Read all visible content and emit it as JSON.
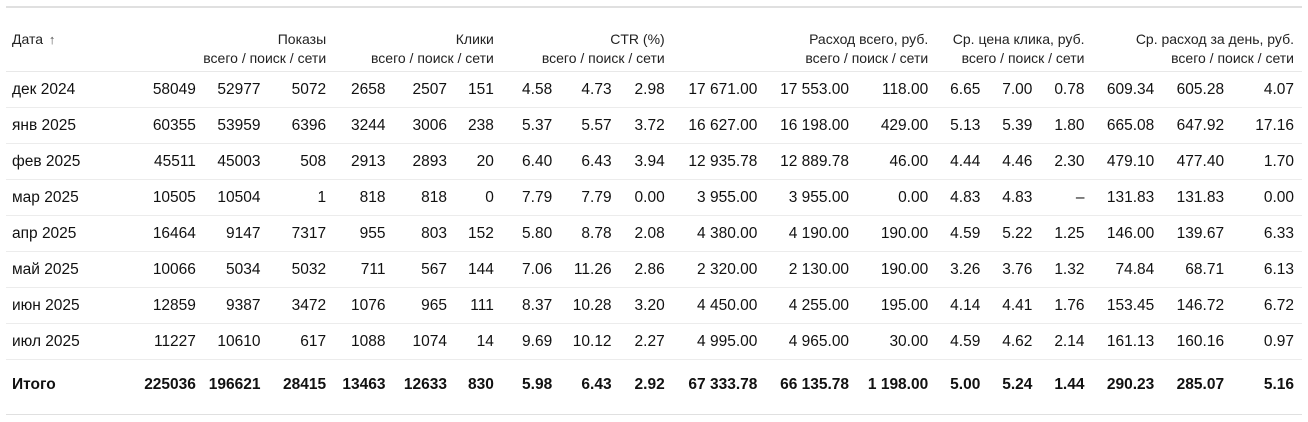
{
  "headers": {
    "date": "Дата",
    "sort_arrow": "↑",
    "impressions": "Показы",
    "clicks": "Клики",
    "ctr": "CTR (%)",
    "spend": "Расход всего, руб.",
    "cpc": "Ср. цена клика, руб.",
    "daily_spend": "Ср. расход за день, руб.",
    "sub": "всего / поиск / сети"
  },
  "rows": [
    {
      "date": "дек 2024",
      "cells": [
        "58049",
        "52977",
        "5072",
        "2658",
        "2507",
        "151",
        "4.58",
        "4.73",
        "2.98",
        "17 671.00",
        "17 553.00",
        "118.00",
        "6.65",
        "7.00",
        "0.78",
        "609.34",
        "605.28",
        "4.07"
      ]
    },
    {
      "date": "янв 2025",
      "cells": [
        "60355",
        "53959",
        "6396",
        "3244",
        "3006",
        "238",
        "5.37",
        "5.57",
        "3.72",
        "16 627.00",
        "16 198.00",
        "429.00",
        "5.13",
        "5.39",
        "1.80",
        "665.08",
        "647.92",
        "17.16"
      ]
    },
    {
      "date": "фев 2025",
      "cells": [
        "45511",
        "45003",
        "508",
        "2913",
        "2893",
        "20",
        "6.40",
        "6.43",
        "3.94",
        "12 935.78",
        "12 889.78",
        "46.00",
        "4.44",
        "4.46",
        "2.30",
        "479.10",
        "477.40",
        "1.70"
      ]
    },
    {
      "date": "мар 2025",
      "cells": [
        "10505",
        "10504",
        "1",
        "818",
        "818",
        "0",
        "7.79",
        "7.79",
        "0.00",
        "3 955.00",
        "3 955.00",
        "0.00",
        "4.83",
        "4.83",
        "–",
        "131.83",
        "131.83",
        "0.00"
      ]
    },
    {
      "date": "апр 2025",
      "cells": [
        "16464",
        "9147",
        "7317",
        "955",
        "803",
        "152",
        "5.80",
        "8.78",
        "2.08",
        "4 380.00",
        "4 190.00",
        "190.00",
        "4.59",
        "5.22",
        "1.25",
        "146.00",
        "139.67",
        "6.33"
      ]
    },
    {
      "date": "май 2025",
      "cells": [
        "10066",
        "5034",
        "5032",
        "711",
        "567",
        "144",
        "7.06",
        "11.26",
        "2.86",
        "2 320.00",
        "2 130.00",
        "190.00",
        "3.26",
        "3.76",
        "1.32",
        "74.84",
        "68.71",
        "6.13"
      ]
    },
    {
      "date": "июн 2025",
      "cells": [
        "12859",
        "9387",
        "3472",
        "1076",
        "965",
        "111",
        "8.37",
        "10.28",
        "3.20",
        "4 450.00",
        "4 255.00",
        "195.00",
        "4.14",
        "4.41",
        "1.76",
        "153.45",
        "146.72",
        "6.72"
      ]
    },
    {
      "date": "июл 2025",
      "cells": [
        "11227",
        "10610",
        "617",
        "1088",
        "1074",
        "14",
        "9.69",
        "10.12",
        "2.27",
        "4 995.00",
        "4 965.00",
        "30.00",
        "4.59",
        "4.62",
        "2.14",
        "161.13",
        "160.16",
        "0.97"
      ]
    }
  ],
  "total": {
    "label": "Итого",
    "cells": [
      "225036",
      "196621",
      "28415",
      "13463",
      "12633",
      "830",
      "5.98",
      "6.43",
      "2.92",
      "67 333.78",
      "66 135.78",
      "1 198.00",
      "5.00",
      "5.24",
      "1.44",
      "290.23",
      "285.07",
      "5.16"
    ]
  }
}
